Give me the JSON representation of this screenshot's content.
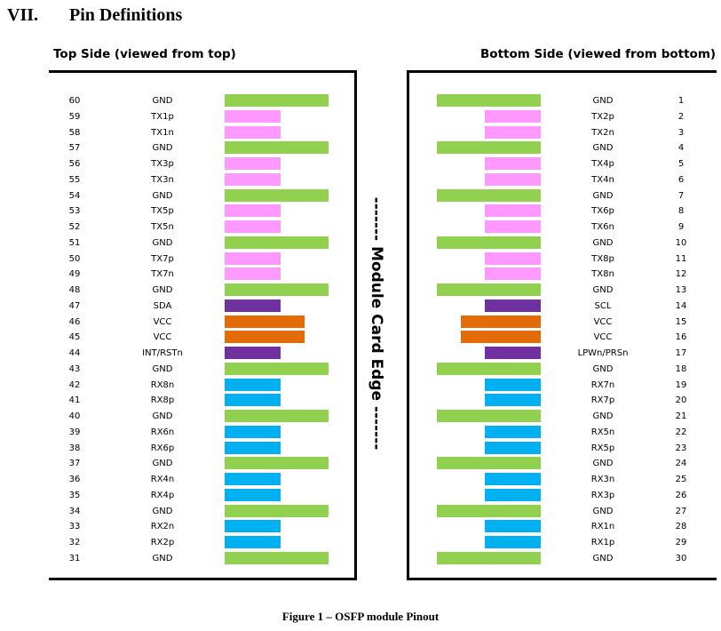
{
  "section": {
    "number": "VII.",
    "title": "Pin Definitions"
  },
  "top_side": {
    "title": "Top Side (viewed from top)",
    "pins": [
      {
        "num": "60",
        "name": "GND",
        "type": "gnd"
      },
      {
        "num": "59",
        "name": "TX1p",
        "type": "tx"
      },
      {
        "num": "58",
        "name": "TX1n",
        "type": "tx"
      },
      {
        "num": "57",
        "name": "GND",
        "type": "gnd"
      },
      {
        "num": "56",
        "name": "TX3p",
        "type": "tx"
      },
      {
        "num": "55",
        "name": "TX3n",
        "type": "tx"
      },
      {
        "num": "54",
        "name": "GND",
        "type": "gnd"
      },
      {
        "num": "53",
        "name": "TX5p",
        "type": "tx"
      },
      {
        "num": "52",
        "name": "TX5n",
        "type": "tx"
      },
      {
        "num": "51",
        "name": "GND",
        "type": "gnd"
      },
      {
        "num": "50",
        "name": "TX7p",
        "type": "tx"
      },
      {
        "num": "49",
        "name": "TX7n",
        "type": "tx"
      },
      {
        "num": "48",
        "name": "GND",
        "type": "gnd"
      },
      {
        "num": "47",
        "name": "SDA",
        "type": "ctrl"
      },
      {
        "num": "46",
        "name": "VCC",
        "type": "vcc"
      },
      {
        "num": "45",
        "name": "VCC",
        "type": "vcc"
      },
      {
        "num": "44",
        "name": "INT/RSTn",
        "type": "ctrl"
      },
      {
        "num": "43",
        "name": "GND",
        "type": "gnd"
      },
      {
        "num": "42",
        "name": "RX8n",
        "type": "rx"
      },
      {
        "num": "41",
        "name": "RX8p",
        "type": "rx"
      },
      {
        "num": "40",
        "name": "GND",
        "type": "gnd"
      },
      {
        "num": "39",
        "name": "RX6n",
        "type": "rx"
      },
      {
        "num": "38",
        "name": "RX6p",
        "type": "rx"
      },
      {
        "num": "37",
        "name": "GND",
        "type": "gnd"
      },
      {
        "num": "36",
        "name": "RX4n",
        "type": "rx"
      },
      {
        "num": "35",
        "name": "RX4p",
        "type": "rx"
      },
      {
        "num": "34",
        "name": "GND",
        "type": "gnd"
      },
      {
        "num": "33",
        "name": "RX2n",
        "type": "rx"
      },
      {
        "num": "32",
        "name": "RX2p",
        "type": "rx"
      },
      {
        "num": "31",
        "name": "GND",
        "type": "gnd"
      }
    ]
  },
  "bottom_side": {
    "title": "Bottom Side (viewed from bottom)",
    "pins": [
      {
        "num": "1",
        "name": "GND",
        "type": "gnd"
      },
      {
        "num": "2",
        "name": "TX2p",
        "type": "tx"
      },
      {
        "num": "3",
        "name": "TX2n",
        "type": "tx"
      },
      {
        "num": "4",
        "name": "GND",
        "type": "gnd"
      },
      {
        "num": "5",
        "name": "TX4p",
        "type": "tx"
      },
      {
        "num": "6",
        "name": "TX4n",
        "type": "tx"
      },
      {
        "num": "7",
        "name": "GND",
        "type": "gnd"
      },
      {
        "num": "8",
        "name": "TX6p",
        "type": "tx"
      },
      {
        "num": "9",
        "name": "TX6n",
        "type": "tx"
      },
      {
        "num": "10",
        "name": "GND",
        "type": "gnd"
      },
      {
        "num": "11",
        "name": "TX8p",
        "type": "tx"
      },
      {
        "num": "12",
        "name": "TX8n",
        "type": "tx"
      },
      {
        "num": "13",
        "name": "GND",
        "type": "gnd"
      },
      {
        "num": "14",
        "name": "SCL",
        "type": "ctrl"
      },
      {
        "num": "15",
        "name": "VCC",
        "type": "vcc"
      },
      {
        "num": "16",
        "name": "VCC",
        "type": "vcc"
      },
      {
        "num": "17",
        "name": "LPWn/PRSn",
        "type": "ctrl"
      },
      {
        "num": "18",
        "name": "GND",
        "type": "gnd"
      },
      {
        "num": "19",
        "name": "RX7n",
        "type": "rx"
      },
      {
        "num": "20",
        "name": "RX7p",
        "type": "rx"
      },
      {
        "num": "21",
        "name": "GND",
        "type": "gnd"
      },
      {
        "num": "22",
        "name": "RX5n",
        "type": "rx"
      },
      {
        "num": "23",
        "name": "RX5p",
        "type": "rx"
      },
      {
        "num": "24",
        "name": "GND",
        "type": "gnd"
      },
      {
        "num": "25",
        "name": "RX3n",
        "type": "rx"
      },
      {
        "num": "26",
        "name": "RX3p",
        "type": "rx"
      },
      {
        "num": "27",
        "name": "GND",
        "type": "gnd"
      },
      {
        "num": "28",
        "name": "RX1n",
        "type": "rx"
      },
      {
        "num": "29",
        "name": "RX1p",
        "type": "rx"
      },
      {
        "num": "30",
        "name": "GND",
        "type": "gnd"
      }
    ]
  },
  "edge_label": "------- Module Card Edge -------",
  "caption": "Figure 1 – OSFP module Pinout",
  "colors": {
    "gnd": "#92d050",
    "tx": "#ff99ff",
    "rx": "#00b0f0",
    "vcc": "#e36c09",
    "ctrl": "#7030a0"
  }
}
